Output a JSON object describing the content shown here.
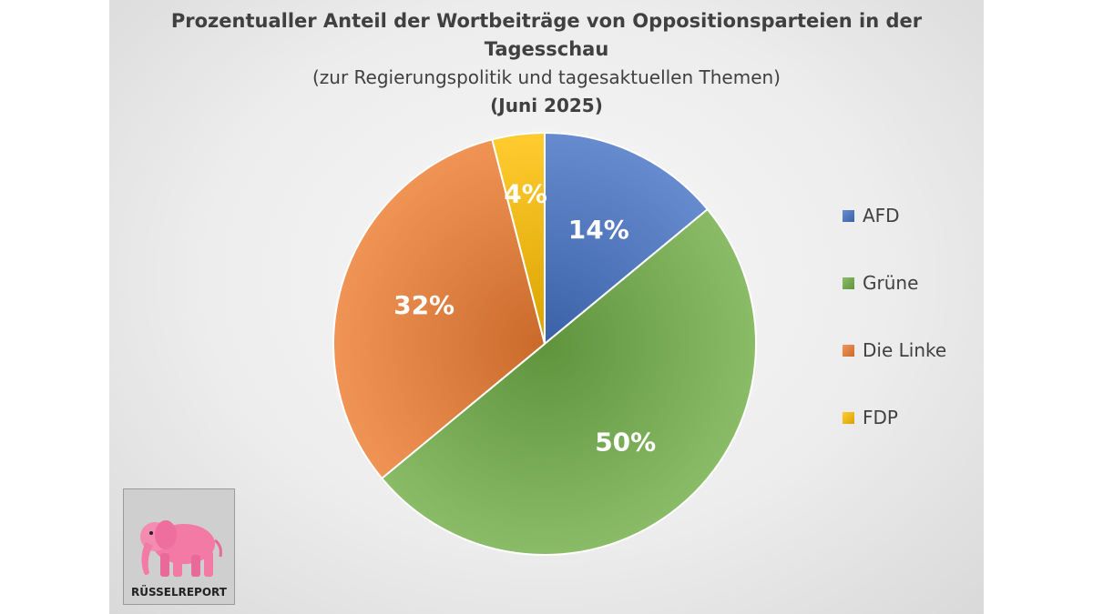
{
  "chart_data": {
    "type": "pie",
    "title": "Prozentualler Anteil der Wortbeiträge von Oppositionsparteien in der Tagesschau",
    "title_lines": [
      "Prozentualler Anteil der Wortbeiträge von Oppositionsparteien in der",
      "Tagesschau"
    ],
    "subtitle": "(zur Regierungspolitik und tagesaktuellen Themen)",
    "date": "(Juni 2025)",
    "legend_position": "right",
    "slices": [
      {
        "label": "AFD",
        "value": 14,
        "display": "14%",
        "color": "#4472c4"
      },
      {
        "label": "Grüne",
        "value": 50,
        "display": "50%",
        "color": "#70ad47"
      },
      {
        "label": "Die Linke",
        "value": 32,
        "display": "32%",
        "color": "#ed7d31"
      },
      {
        "label": "FDP",
        "value": 4,
        "display": "4%",
        "color": "#ffc000"
      }
    ]
  },
  "logo": {
    "text": "RÜSSELREPORT"
  }
}
